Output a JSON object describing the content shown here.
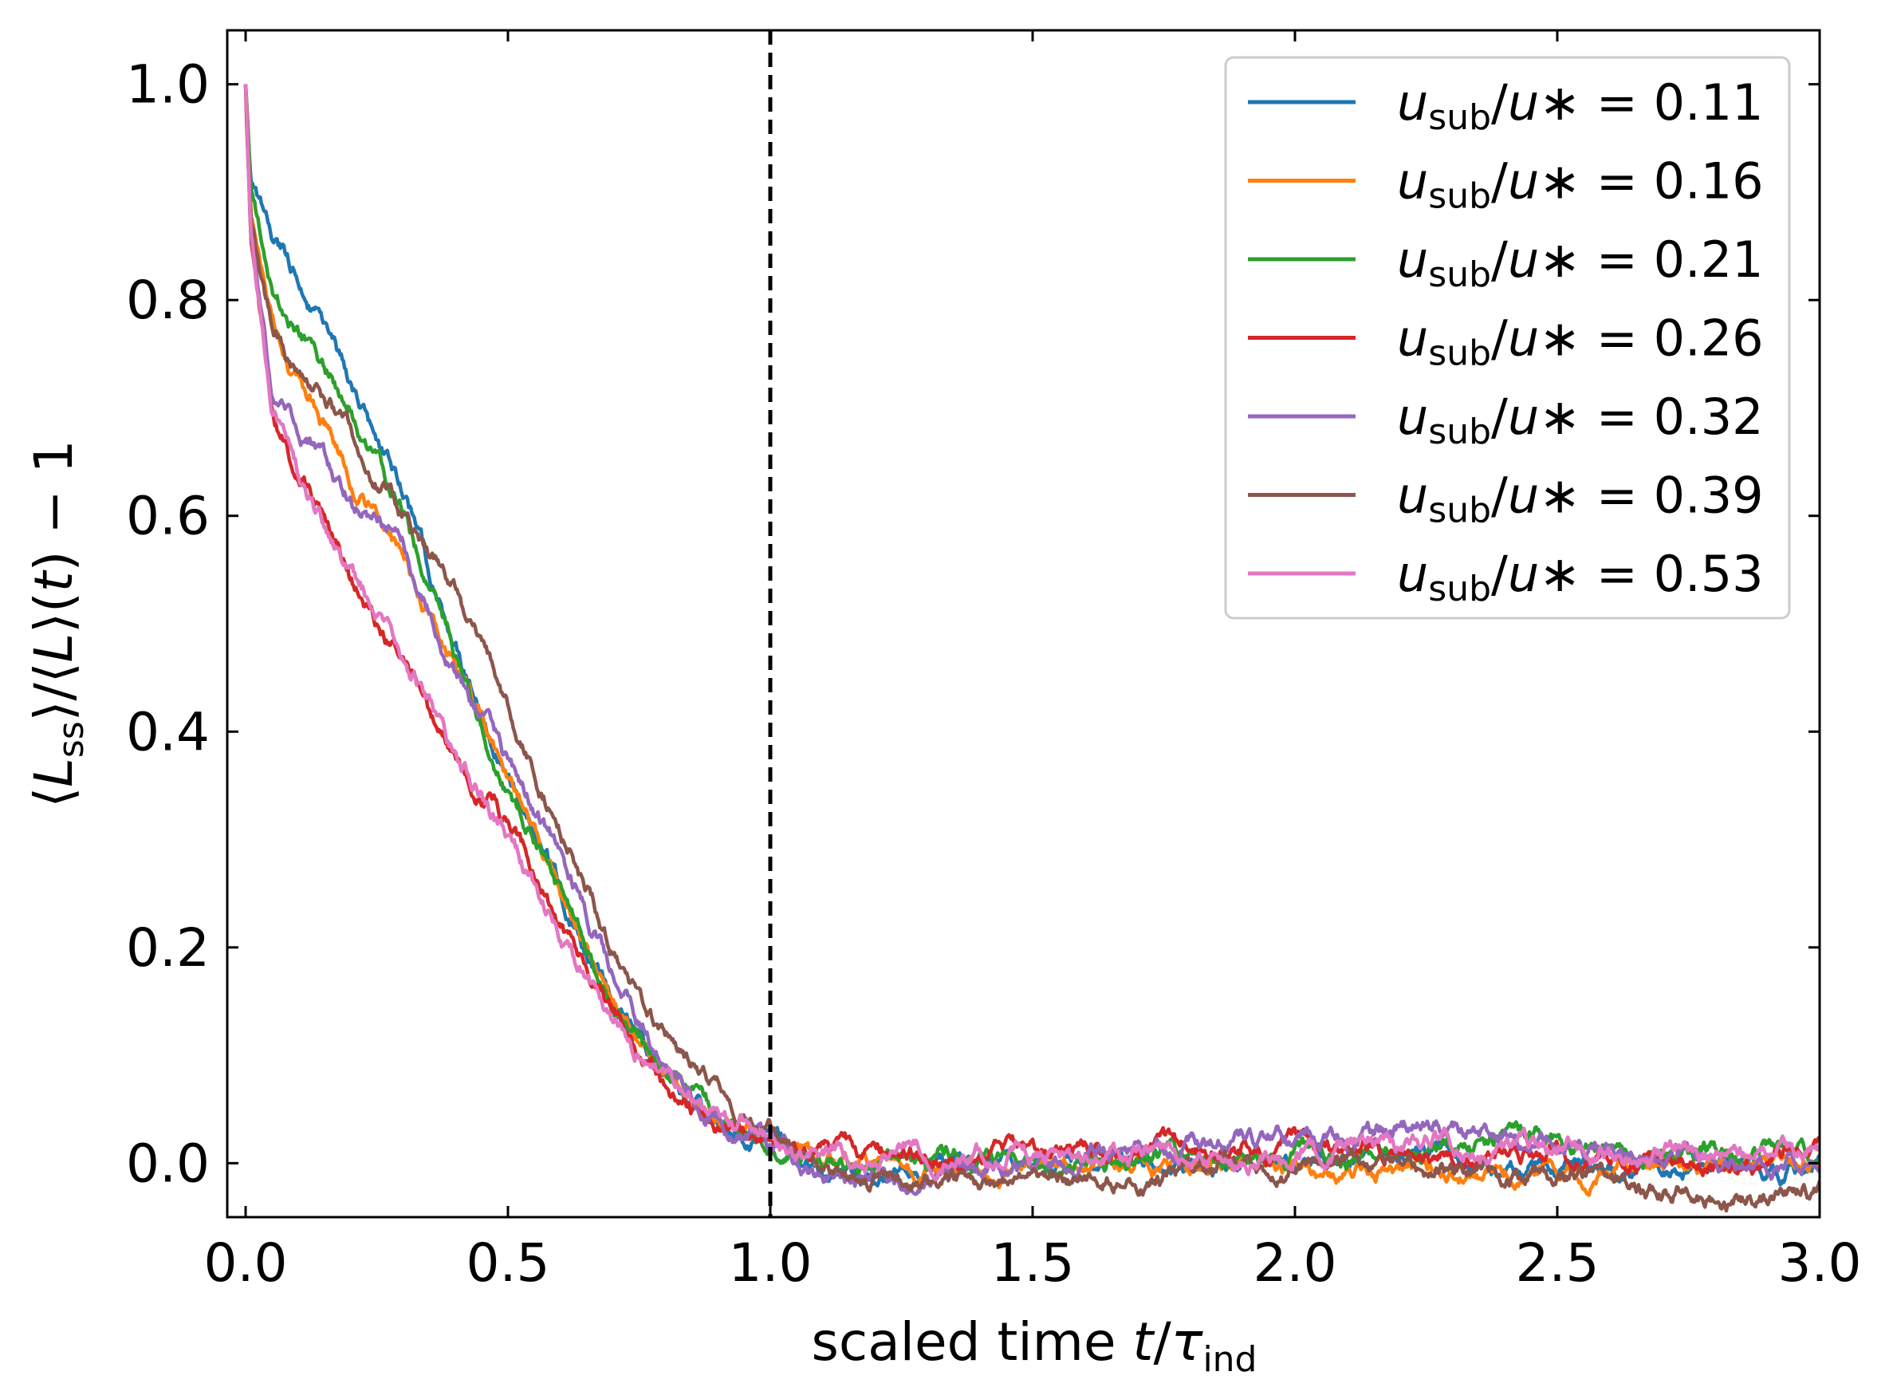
{
  "chart_data": {
    "type": "line",
    "title": "",
    "xlabel": {
      "prefix": "scaled time ",
      "var": "t",
      "slash": "/",
      "tau": "τ",
      "sub": "ind"
    },
    "ylabel": {
      "open": "⟨",
      "L": "L",
      "ss": "ss",
      "mid": "⟩/⟨",
      "L2": "L",
      "close": "⟩(",
      "t": "t",
      "tail": ") − 1"
    },
    "xlim": [
      -0.035,
      3.0
    ],
    "ylim": [
      -0.05,
      1.05
    ],
    "xticks": [
      0.0,
      0.5,
      1.0,
      1.5,
      2.0,
      2.5,
      3.0
    ],
    "xtick_labels": [
      "0.0",
      "0.5",
      "1.0",
      "1.5",
      "2.0",
      "2.5",
      "3.0"
    ],
    "yticks": [
      0.0,
      0.2,
      0.4,
      0.6,
      0.8,
      1.0
    ],
    "ytick_labels": [
      "0.0",
      "0.2",
      "0.4",
      "0.6",
      "0.8",
      "1.0"
    ],
    "vline": {
      "x": 1.0,
      "style": "dashed",
      "color": "#000000"
    },
    "legend": {
      "placement": "top-right",
      "label_parts": {
        "u": "u",
        "sub": "sub",
        "slash": "/",
        "u2": "u",
        "star": "∗",
        "eq": " = "
      }
    },
    "series": [
      {
        "name": "u_sub/u* = 0.11",
        "value_label": "0.11",
        "color": "#1f77b4",
        "seed": 11,
        "t": [
          0,
          0.01,
          0.05,
          0.1,
          0.2,
          0.3,
          0.4,
          0.5,
          0.6,
          0.7,
          0.8,
          0.9,
          1.0,
          1.05,
          1.1,
          1.3,
          1.6,
          2.0,
          2.3,
          2.5,
          2.8,
          3.0
        ],
        "y": [
          1.0,
          0.9,
          0.86,
          0.82,
          0.72,
          0.62,
          0.48,
          0.36,
          0.25,
          0.15,
          0.08,
          0.04,
          0.02,
          0.0,
          -0.01,
          -0.005,
          0.0,
          0.0,
          0.005,
          -0.005,
          -0.005,
          -0.005
        ]
      },
      {
        "name": "u_sub/u* = 0.16",
        "value_label": "0.16",
        "color": "#ff7f0e",
        "seed": 16,
        "t": [
          0,
          0.01,
          0.05,
          0.1,
          0.2,
          0.3,
          0.4,
          0.5,
          0.6,
          0.7,
          0.8,
          0.9,
          1.0,
          1.05,
          1.1,
          1.3,
          1.6,
          2.0,
          2.3,
          2.5,
          2.8,
          3.0
        ],
        "y": [
          1.0,
          0.88,
          0.78,
          0.73,
          0.64,
          0.56,
          0.46,
          0.35,
          0.25,
          0.15,
          0.08,
          0.04,
          0.02,
          0.005,
          0.0,
          -0.005,
          0.0,
          -0.005,
          -0.005,
          -0.005,
          -0.005,
          -0.005
        ]
      },
      {
        "name": "u_sub/u* = 0.21",
        "value_label": "0.21",
        "color": "#2ca02c",
        "seed": 21,
        "t": [
          0,
          0.01,
          0.05,
          0.1,
          0.2,
          0.3,
          0.4,
          0.5,
          0.6,
          0.7,
          0.8,
          0.9,
          1.0,
          1.05,
          1.1,
          1.3,
          1.6,
          2.0,
          2.3,
          2.5,
          2.8,
          3.0
        ],
        "y": [
          1.0,
          0.9,
          0.8,
          0.77,
          0.7,
          0.6,
          0.47,
          0.35,
          0.25,
          0.15,
          0.08,
          0.04,
          0.02,
          0.01,
          0.005,
          0.0,
          0.005,
          0.005,
          0.015,
          0.02,
          0.01,
          0.01
        ]
      },
      {
        "name": "u_sub/u* = 0.26",
        "value_label": "0.26",
        "color": "#d62728",
        "seed": 26,
        "t": [
          0,
          0.01,
          0.05,
          0.1,
          0.2,
          0.3,
          0.4,
          0.5,
          0.6,
          0.7,
          0.8,
          0.9,
          1.0,
          1.05,
          1.1,
          1.3,
          1.6,
          2.0,
          2.3,
          2.5,
          2.8,
          3.0
        ],
        "y": [
          1.0,
          0.86,
          0.7,
          0.64,
          0.54,
          0.47,
          0.38,
          0.31,
          0.22,
          0.13,
          0.07,
          0.03,
          0.02,
          0.01,
          0.01,
          0.01,
          0.01,
          0.015,
          0.015,
          0.01,
          0.005,
          0.005
        ]
      },
      {
        "name": "u_sub/u* = 0.32",
        "value_label": "0.32",
        "color": "#9467bd",
        "seed": 32,
        "t": [
          0,
          0.01,
          0.05,
          0.1,
          0.2,
          0.3,
          0.4,
          0.5,
          0.6,
          0.7,
          0.8,
          0.9,
          1.0,
          1.05,
          1.1,
          1.15,
          1.3,
          1.6,
          1.8,
          2.0,
          2.2,
          2.25,
          2.3,
          2.5,
          2.8,
          3.0
        ],
        "y": [
          1.0,
          0.86,
          0.72,
          0.68,
          0.62,
          0.57,
          0.46,
          0.37,
          0.29,
          0.18,
          0.09,
          0.04,
          0.02,
          -0.005,
          -0.02,
          -0.015,
          -0.01,
          0.0,
          0.02,
          0.025,
          0.03,
          0.04,
          0.03,
          0.015,
          0.0,
          0.0
        ]
      },
      {
        "name": "u_sub/u* = 0.39",
        "value_label": "0.39",
        "color": "#8c564b",
        "seed": 39,
        "t": [
          0,
          0.01,
          0.05,
          0.1,
          0.2,
          0.3,
          0.4,
          0.5,
          0.6,
          0.7,
          0.8,
          0.9,
          1.0,
          1.05,
          1.1,
          1.3,
          1.5,
          1.8,
          2.0,
          2.3,
          2.5,
          2.6,
          2.8,
          2.9,
          3.0
        ],
        "y": [
          1.0,
          0.87,
          0.78,
          0.73,
          0.68,
          0.6,
          0.53,
          0.42,
          0.31,
          0.2,
          0.12,
          0.07,
          0.03,
          0.01,
          -0.01,
          -0.015,
          -0.02,
          -0.01,
          0.0,
          -0.005,
          -0.01,
          -0.02,
          -0.03,
          -0.035,
          -0.025
        ]
      },
      {
        "name": "u_sub/u* = 0.53",
        "value_label": "0.53",
        "color": "#e377c2",
        "seed": 53,
        "t": [
          0,
          0.01,
          0.05,
          0.1,
          0.2,
          0.3,
          0.4,
          0.5,
          0.6,
          0.7,
          0.8,
          0.9,
          1.0,
          1.05,
          1.1,
          1.3,
          1.6,
          2.0,
          2.3,
          2.5,
          2.8,
          3.0
        ],
        "y": [
          1.0,
          0.86,
          0.7,
          0.64,
          0.55,
          0.47,
          0.38,
          0.3,
          0.21,
          0.13,
          0.07,
          0.04,
          0.02,
          0.01,
          0.01,
          0.01,
          0.005,
          0.01,
          0.02,
          0.015,
          0.01,
          0.01
        ]
      }
    ]
  }
}
